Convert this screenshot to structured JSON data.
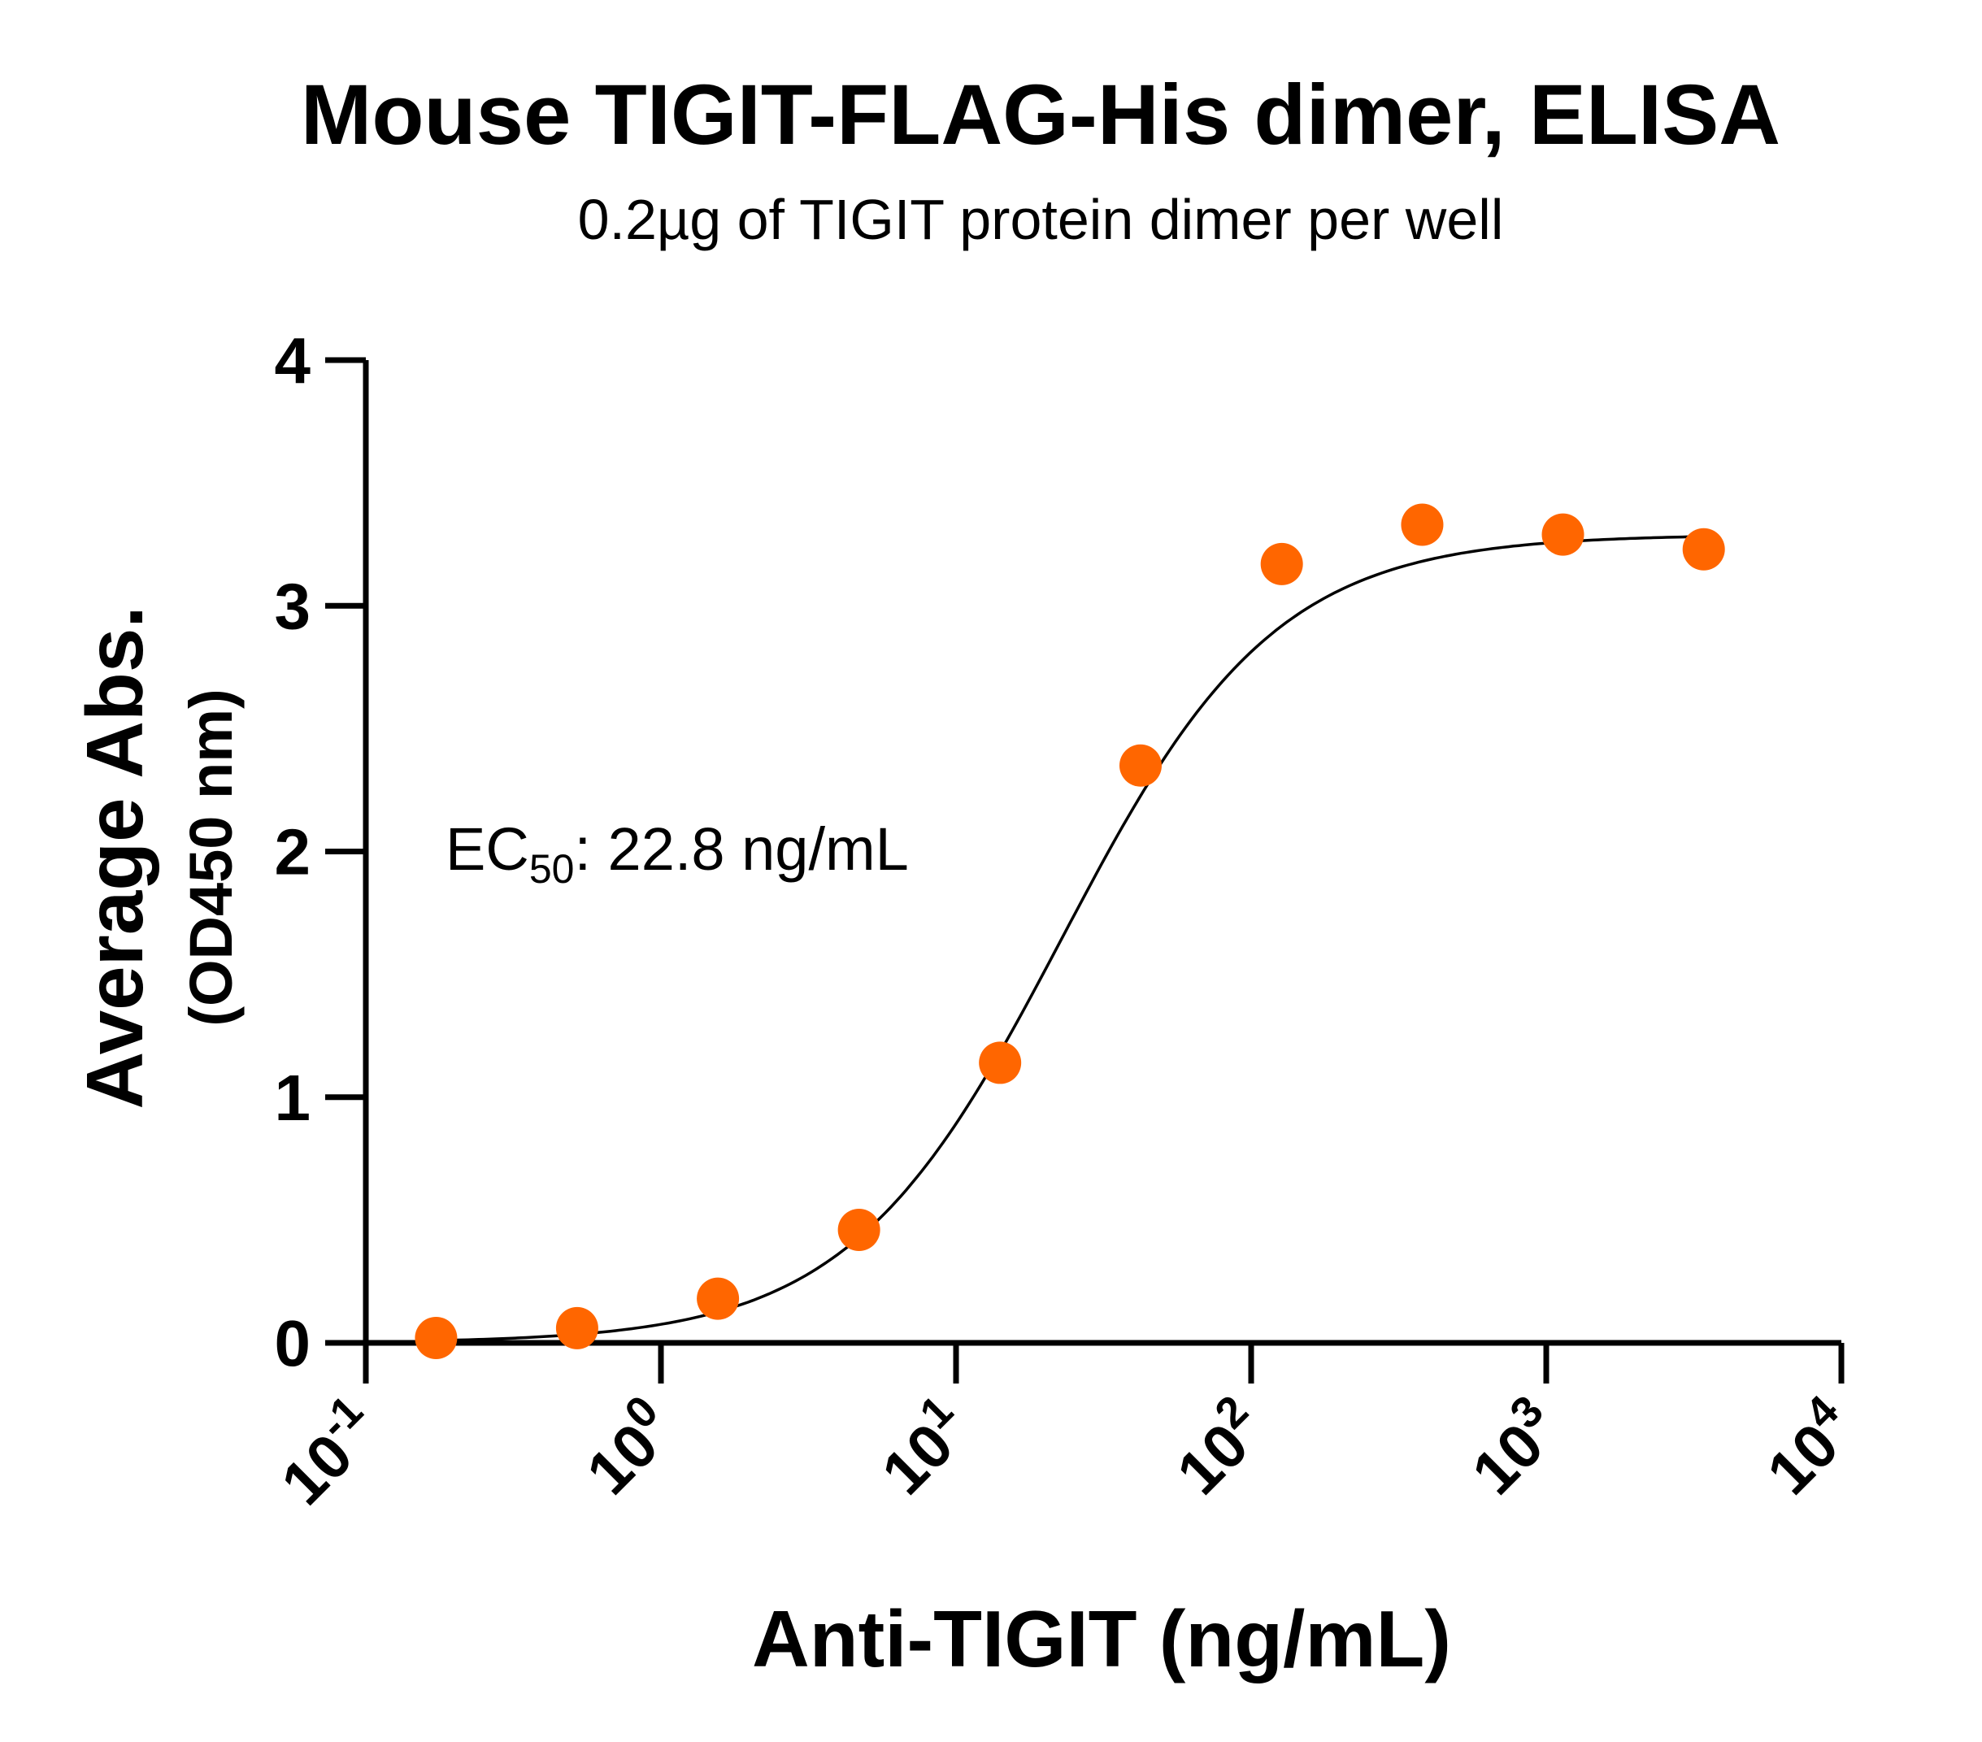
{
  "chart_data": {
    "type": "scatter",
    "title": "Mouse TIGIT-FLAG-His dimer, ELISA",
    "subtitle": "0.2µg of TIGIT protein dimer per well",
    "xlabel": "Anti-TIGIT (ng/mL)",
    "ylabel": "Average Abs.",
    "ylabel_sub": "(OD450 nm)",
    "x_scale": "log",
    "xlim": [
      0.1,
      10000
    ],
    "ylim": [
      0,
      4
    ],
    "x_ticks": [
      {
        "base": "10",
        "exp": "-1"
      },
      {
        "base": "10",
        "exp": "0"
      },
      {
        "base": "10",
        "exp": "1"
      },
      {
        "base": "10",
        "exp": "2"
      },
      {
        "base": "10",
        "exp": "3"
      },
      {
        "base": "10",
        "exp": "4"
      }
    ],
    "y_ticks": [
      "0",
      "1",
      "2",
      "3",
      "4"
    ],
    "grid": false,
    "annotation": {
      "prefix": "EC",
      "sub": "50",
      "suffix": ": 22.8 ng/mL"
    },
    "series": [
      {
        "marker_color": "#ff6600",
        "x": [
          0.173,
          0.52,
          1.56,
          4.69,
          14.1,
          42.2,
          127,
          380,
          1139,
          3417
        ],
        "y": [
          0.02,
          0.06,
          0.18,
          0.46,
          1.14,
          2.35,
          3.17,
          3.33,
          3.29,
          3.23
        ]
      }
    ],
    "fit_curve": {
      "color": "#000000",
      "bottom": 0.0,
      "top": 3.29,
      "ec50": 22.8,
      "hill": 1.2
    }
  }
}
